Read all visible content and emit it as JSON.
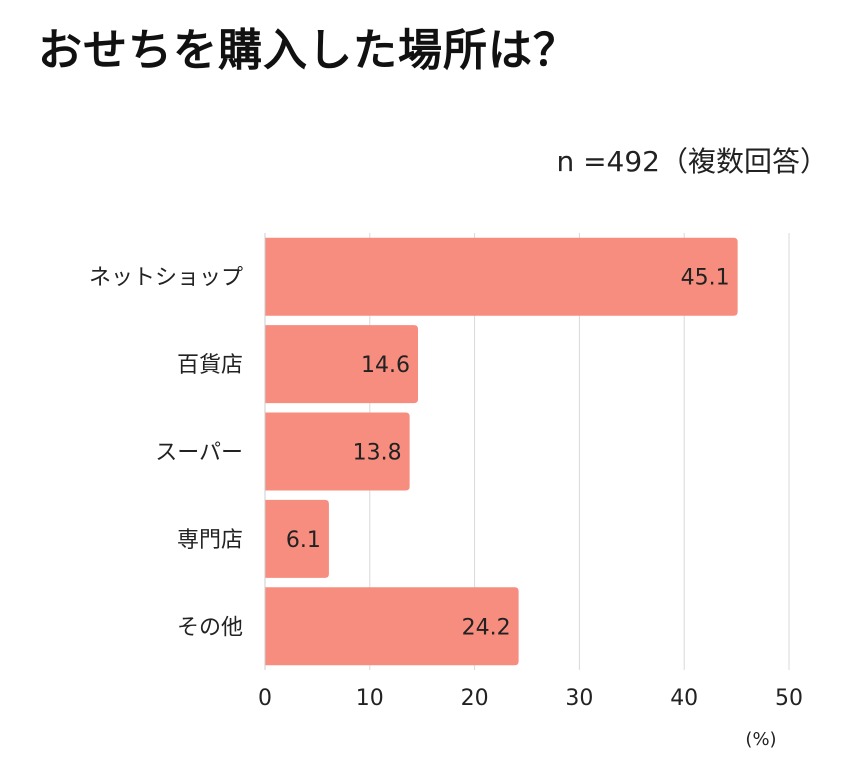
{
  "chart_data": {
    "type": "bar",
    "orientation": "horizontal",
    "title": "おせちを購入した場所は？",
    "subtitle": "n =492（複数回答）",
    "categories": [
      "ネットショップ",
      "百貨店",
      "スーパー",
      "専門店",
      "その他"
    ],
    "values": [
      45.1,
      14.6,
      13.8,
      6.1,
      24.2
    ],
    "value_labels": [
      "45.1",
      "14.6",
      "13.8",
      "6.1",
      "24.2"
    ],
    "xlim": [
      0,
      50
    ],
    "xticks": [
      "0",
      "10",
      "20",
      "30",
      "40",
      "50"
    ],
    "xunit": "(%)",
    "grid": true,
    "bar_color": "#F78D7E",
    "grid_color": "#D9D9D9"
  }
}
